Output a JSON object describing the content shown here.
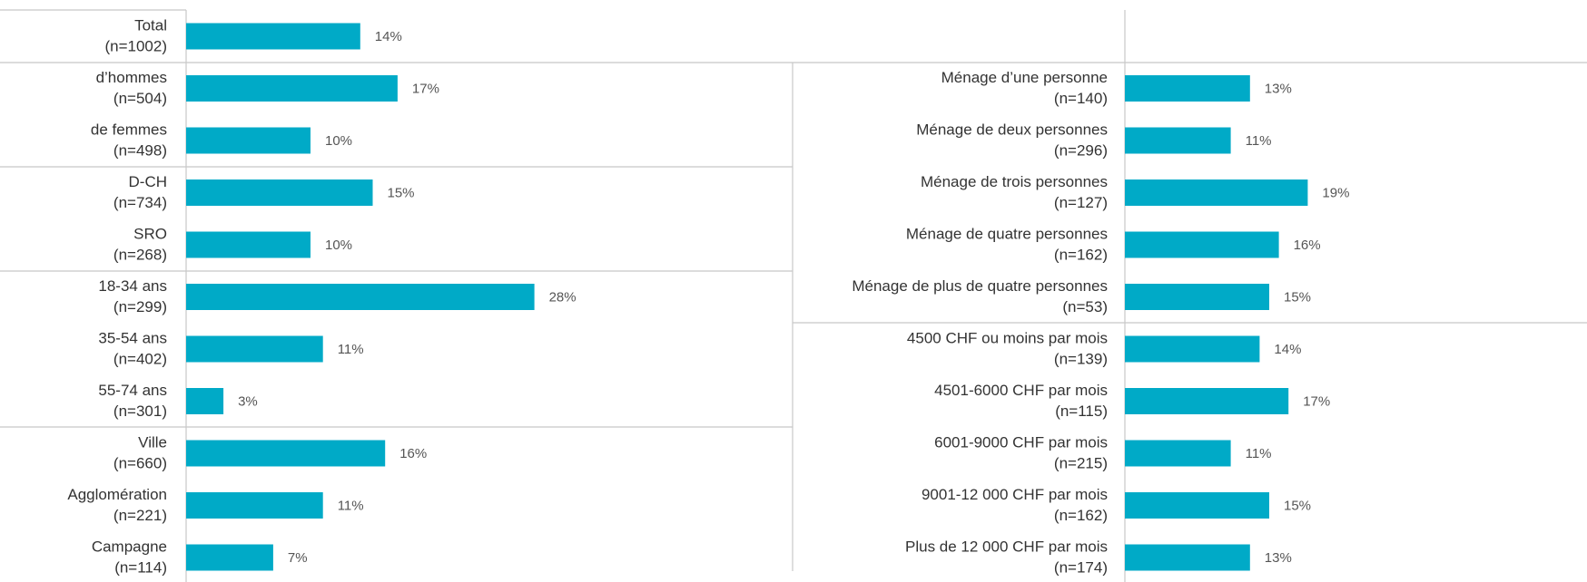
{
  "chart_data": [
    {
      "type": "bar",
      "orientation": "horizontal",
      "color": "#00aac7",
      "xlim": [
        0,
        50
      ],
      "categories": [
        "Total",
        "d’hommes",
        "de femmes",
        "D-CH",
        "SRO",
        "18-34 ans",
        "35-54 ans",
        "55-74 ans",
        "Ville",
        "Agglomération",
        "Campagne"
      ],
      "sample_sizes": [
        "(n=1002)",
        "(n=504)",
        "(n=498)",
        "(n=734)",
        "(n=268)",
        "(n=299)",
        "(n=402)",
        "(n=301)",
        "(n=660)",
        "(n=221)",
        "(n=114)"
      ],
      "values": [
        14,
        17,
        10,
        15,
        10,
        28,
        11,
        3,
        16,
        11,
        7
      ],
      "value_labels": [
        "14%",
        "17%",
        "10%",
        "15%",
        "10%",
        "28%",
        "11%",
        "3%",
        "16%",
        "11%",
        "7%"
      ]
    },
    {
      "type": "bar",
      "orientation": "horizontal",
      "color": "#00aac7",
      "xlim": [
        0,
        50
      ],
      "categories": [
        "Ménage d’une personne",
        "Ménage de deux personnes",
        "Ménage de trois personnes",
        "Ménage de quatre personnes",
        "Ménage de plus de quatre personnes",
        "4500 CHF ou moins par mois",
        "4501-6000 CHF par mois",
        "6001-9000 CHF par mois",
        "9001-12 000 CHF par mois",
        "Plus de 12 000 CHF par mois"
      ],
      "sample_sizes": [
        "(n=140)",
        "(n=296)",
        "(n=127)",
        "(n=162)",
        "(n=53)",
        "(n=139)",
        "(n=115)",
        "(n=215)",
        "(n=162)",
        "(n=174)"
      ],
      "values": [
        13,
        11,
        19,
        16,
        15,
        14,
        17,
        11,
        15,
        13
      ],
      "value_labels": [
        "13%",
        "11%",
        "19%",
        "16%",
        "15%",
        "14%",
        "17%",
        "11%",
        "15%",
        "13%"
      ]
    }
  ]
}
